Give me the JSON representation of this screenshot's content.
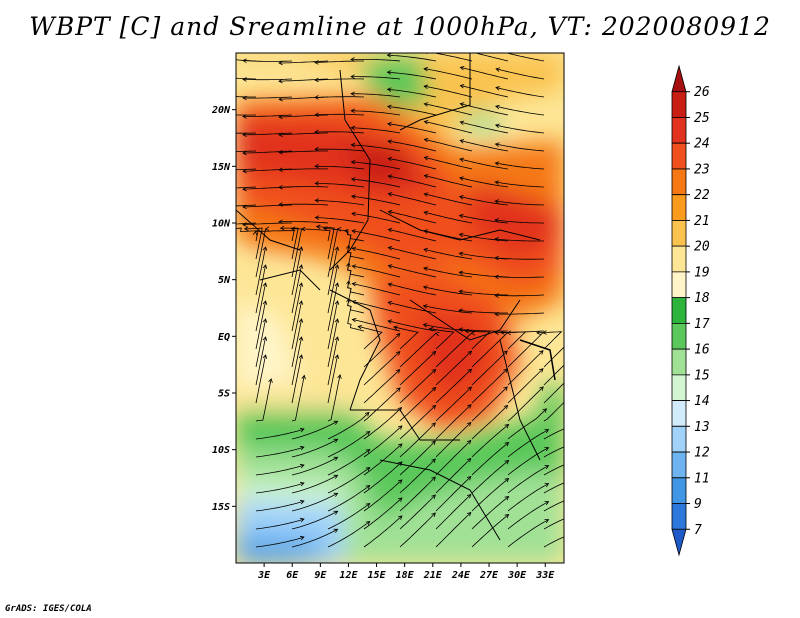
{
  "title": "WBPT [C] and Sreamline at 1000hPa, VT: 2020080912",
  "footer": "GrADS: IGES/COLA",
  "map": {
    "lat_labels": [
      "20N",
      "15N",
      "10N",
      "5N",
      "EQ",
      "5S",
      "10S",
      "15S"
    ],
    "lat_values": [
      20,
      15,
      10,
      5,
      0,
      -5,
      -10,
      -15
    ],
    "lon_labels": [
      "3E",
      "6E",
      "9E",
      "12E",
      "15E",
      "18E",
      "21E",
      "24E",
      "27E",
      "30E",
      "33E"
    ],
    "lon_values": [
      3,
      6,
      9,
      12,
      15,
      18,
      21,
      24,
      27,
      30,
      33
    ],
    "lon_range": [
      0,
      35
    ],
    "lat_range": [
      -20,
      25
    ]
  },
  "colorbar": {
    "labels": [
      "26",
      "25",
      "24",
      "23",
      "22",
      "21",
      "20",
      "19",
      "18",
      "17",
      "16",
      "15",
      "14",
      "13",
      "12",
      "11",
      "9",
      "7"
    ],
    "colors": [
      "#a50f0f",
      "#c81e14",
      "#e1321e",
      "#f0501e",
      "#f57814",
      "#fa9b1e",
      "#fac350",
      "#fde696",
      "#fff5c8",
      "#2db43c",
      "#5ac85a",
      "#a0e196",
      "#d2f5d2",
      "#d2ebfa",
      "#a0d2fa",
      "#6eb4f0",
      "#4196e6",
      "#2d78dc",
      "#1e5ac8"
    ]
  }
}
